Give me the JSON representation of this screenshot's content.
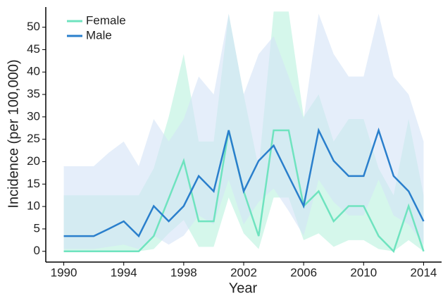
{
  "chart_data": {
    "type": "line",
    "x_label": "Year",
    "y_label": "Incidence (per 100,000)",
    "x": [
      1990,
      1991,
      1992,
      1993,
      1994,
      1995,
      1996,
      1997,
      1998,
      1999,
      2000,
      2001,
      2002,
      2003,
      2004,
      2005,
      2006,
      2007,
      2008,
      2009,
      2010,
      2011,
      2012,
      2013,
      2014
    ],
    "series": [
      {
        "name": "Female",
        "color": "#6fe3bf",
        "band_color": "#b9f2dd",
        "values": [
          0,
          0,
          0,
          0,
          0,
          0,
          3.4,
          11.8,
          20.2,
          6.7,
          6.7,
          27,
          13.4,
          3.4,
          27,
          27,
          10.1,
          13.4,
          6.7,
          10.1,
          10.1,
          3.4,
          0,
          10.1,
          0
        ],
        "lower": [
          0,
          0,
          0,
          0,
          0,
          0,
          0.5,
          4,
          7,
          1,
          1,
          12,
          4,
          0.5,
          12,
          12,
          2.5,
          4,
          1,
          2.5,
          2.5,
          0.5,
          0,
          2.5,
          0
        ],
        "upper": [
          12.5,
          12.5,
          12.5,
          12.5,
          12.5,
          12.5,
          18.5,
          30,
          44,
          24.5,
          24.5,
          53,
          35,
          18.5,
          53.5,
          53.5,
          30,
          35,
          24.5,
          29.5,
          29.5,
          18.5,
          12.5,
          29.5,
          12.5
        ]
      },
      {
        "name": "Male",
        "color": "#2a7fcc",
        "band_color": "#d3e2f6",
        "values": [
          3.4,
          3.4,
          3.4,
          5,
          6.7,
          3.4,
          10.1,
          6.7,
          10.1,
          16.8,
          13.4,
          27,
          13.4,
          20.2,
          23.6,
          16.8,
          10.1,
          27,
          20.2,
          16.8,
          16.8,
          27,
          16.8,
          13.4,
          6.7
        ],
        "lower": [
          0.5,
          0.5,
          0.5,
          1,
          1.5,
          0.5,
          3.5,
          1.5,
          3.5,
          8,
          6,
          16,
          6,
          11,
          14,
          9,
          3.5,
          16,
          11,
          8,
          8,
          16,
          8,
          6,
          1.5
        ],
        "upper": [
          19,
          19,
          19,
          22,
          24.5,
          19,
          29.5,
          24.5,
          29.5,
          39,
          35,
          53,
          35,
          44,
          48,
          39,
          29.5,
          53,
          44,
          39,
          39,
          53,
          39,
          35,
          24.5
        ]
      }
    ],
    "xlim": [
      1988.8,
      2015.2
    ],
    "ylim": [
      -2.4,
      54.5
    ],
    "xticks": [
      1990,
      1994,
      1998,
      2002,
      2006,
      2010,
      2014
    ],
    "yticks": [
      0,
      5,
      10,
      15,
      20,
      25,
      30,
      35,
      40,
      45,
      50
    ],
    "grid": false,
    "legend": "top-left"
  }
}
